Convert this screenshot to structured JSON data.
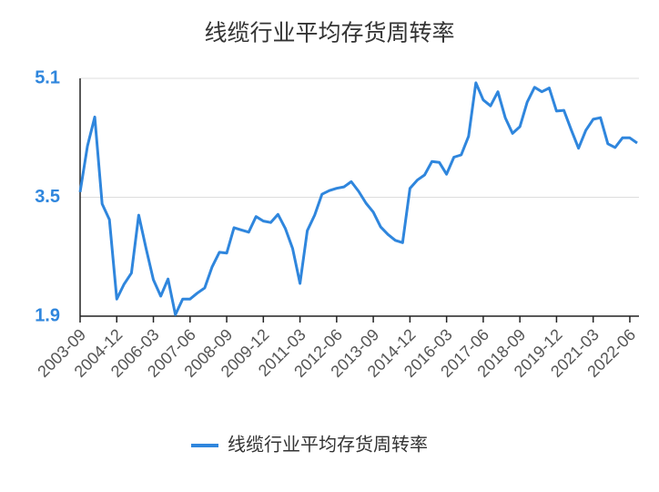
{
  "chart_data": {
    "type": "line",
    "title": "线缆行业平均存货周转率",
    "categories": [
      "2003-09",
      null,
      null,
      null,
      null,
      "2004-12",
      null,
      null,
      null,
      null,
      "2006-03",
      null,
      null,
      null,
      null,
      "2007-06",
      null,
      null,
      null,
      null,
      "2008-09",
      null,
      null,
      null,
      null,
      "2009-12",
      null,
      null,
      null,
      null,
      "2011-03",
      null,
      null,
      null,
      null,
      "2012-06",
      null,
      null,
      null,
      null,
      "2013-09",
      null,
      null,
      null,
      null,
      "2014-12",
      null,
      null,
      null,
      null,
      "2016-03",
      null,
      null,
      null,
      null,
      "2017-06",
      null,
      null,
      null,
      null,
      "2018-09",
      null,
      null,
      null,
      null,
      "2019-12",
      null,
      null,
      null,
      null,
      "2021-03",
      null,
      null,
      null,
      null,
      "2022-06",
      null
    ],
    "series": [
      {
        "name": "线缆行业平均存货周转率",
        "color": "#2f86dd",
        "values": [
          3.57,
          4.19,
          4.58,
          3.41,
          3.2,
          2.13,
          2.33,
          2.48,
          3.26,
          2.81,
          2.39,
          2.17,
          2.4,
          1.92,
          2.13,
          2.13,
          2.21,
          2.28,
          2.56,
          2.76,
          2.75,
          3.09,
          3.06,
          3.03,
          3.24,
          3.18,
          3.16,
          3.27,
          3.08,
          2.81,
          2.34,
          3.05,
          3.26,
          3.54,
          3.59,
          3.62,
          3.64,
          3.71,
          3.58,
          3.42,
          3.3,
          3.1,
          3.0,
          2.92,
          2.89,
          3.62,
          3.73,
          3.8,
          3.98,
          3.97,
          3.81,
          4.04,
          4.07,
          4.32,
          5.04,
          4.81,
          4.73,
          4.92,
          4.57,
          4.36,
          4.45,
          4.78,
          4.98,
          4.92,
          4.97,
          4.66,
          4.67,
          4.41,
          4.16,
          4.4,
          4.55,
          4.57,
          4.22,
          4.17,
          4.3,
          4.3,
          4.23
        ]
      }
    ],
    "ylim": [
      1.9,
      5.1
    ],
    "yticks": [
      1.9,
      3.5,
      5.1
    ],
    "grid": true,
    "legend": "bottom"
  }
}
